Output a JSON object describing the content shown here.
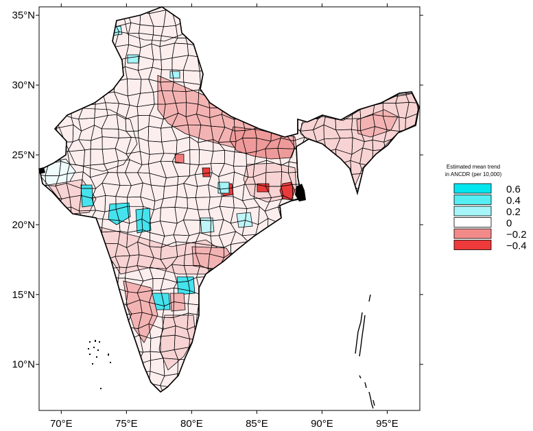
{
  "map": {
    "lat_ticks": [
      {
        "value": 35,
        "label": "35°N"
      },
      {
        "value": 30,
        "label": "30°N"
      },
      {
        "value": 25,
        "label": "25°N"
      },
      {
        "value": 20,
        "label": "20°N"
      },
      {
        "value": 15,
        "label": "15°N"
      },
      {
        "value": 10,
        "label": "10°N"
      }
    ],
    "lon_ticks": [
      {
        "value": 70,
        "label": "70°E"
      },
      {
        "value": 75,
        "label": "75°E"
      },
      {
        "value": 80,
        "label": "80°E"
      },
      {
        "value": 85,
        "label": "85°E"
      },
      {
        "value": 90,
        "label": "90°E"
      },
      {
        "value": 95,
        "label": "95°E"
      }
    ],
    "lon_range": [
      68.3,
      97.5
    ],
    "lat_range": [
      6.7,
      35.6
    ]
  },
  "legend": {
    "title_line1": "Estimated mean trend",
    "title_line2": "in ANCDR (per 10,000)",
    "items": [
      {
        "label": "0.6",
        "color": "#00e5ee"
      },
      {
        "label": "0.4",
        "color": "#55eef2"
      },
      {
        "label": "0.2",
        "color": "#a6f5f8"
      },
      {
        "label": "0",
        "color": "#ffffff"
      },
      {
        "label": "−0.2",
        "color": "#f38a8a"
      },
      {
        "label": "−0.4",
        "color": "#ee3a3a"
      }
    ]
  },
  "colors": {
    "lightest_pink": "#fdeeee",
    "light_pink": "#f8d3d3",
    "pink": "#f4b3b3",
    "mid_red": "#ef7b7b",
    "red": "#ea3b3b",
    "cyan": "#45e3ee",
    "light_cyan": "#bff4f8",
    "white": "#ffffff"
  }
}
